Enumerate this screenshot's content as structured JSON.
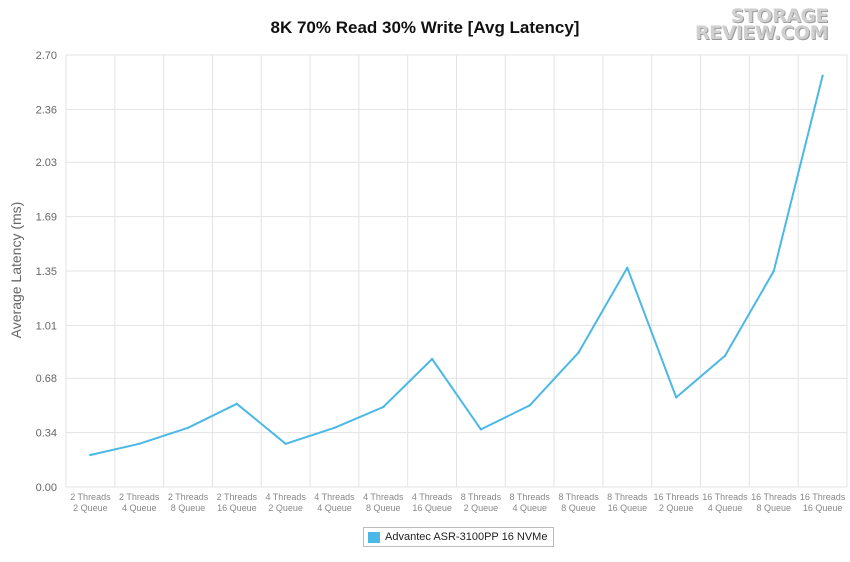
{
  "logo": {
    "line1": "STORAGE",
    "line2": "REVIEW.COM"
  },
  "chart_data": {
    "type": "line",
    "title": "8K 70% Read 30% Write [Avg Latency]",
    "ylabel": "Average Latency (ms)",
    "xlabel": "",
    "ylim": [
      0,
      2.7
    ],
    "yticks": [
      "0.00",
      "0.34",
      "0.68",
      "1.01",
      "1.35",
      "1.69",
      "2.03",
      "2.36",
      "2.70"
    ],
    "categories": [
      [
        "2 Threads",
        "2 Queue"
      ],
      [
        "2 Threads",
        "4 Queue"
      ],
      [
        "2 Threads",
        "8 Queue"
      ],
      [
        "2 Threads",
        "16 Queue"
      ],
      [
        "4 Threads",
        "2 Queue"
      ],
      [
        "4 Threads",
        "4 Queue"
      ],
      [
        "4 Threads",
        "8 Queue"
      ],
      [
        "4 Threads",
        "16 Queue"
      ],
      [
        "8 Threads",
        "2 Queue"
      ],
      [
        "8 Threads",
        "4 Queue"
      ],
      [
        "8 Threads",
        "8 Queue"
      ],
      [
        "8 Threads",
        "16 Queue"
      ],
      [
        "16 Threads",
        "2 Queue"
      ],
      [
        "16 Threads",
        "4 Queue"
      ],
      [
        "16 Threads",
        "8 Queue"
      ],
      [
        "16 Threads",
        "16 Queue"
      ]
    ],
    "series": [
      {
        "name": "Advantec ASR-3100PP 16 NVMe",
        "color": "#4cb8e6",
        "values": [
          0.2,
          0.27,
          0.37,
          0.52,
          0.27,
          0.37,
          0.5,
          0.8,
          0.36,
          0.51,
          0.84,
          1.37,
          0.56,
          0.82,
          1.35,
          2.57
        ]
      }
    ],
    "grid": true,
    "legend_position": "bottom-center"
  }
}
